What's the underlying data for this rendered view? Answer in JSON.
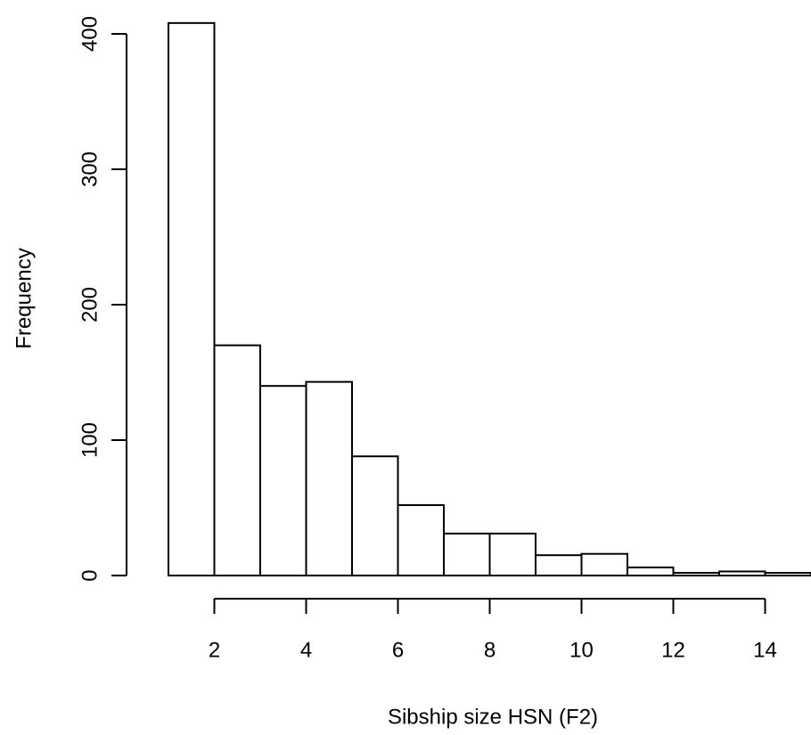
{
  "chart_data": {
    "type": "histogram",
    "x_label": "Sibship size HSN (F2)",
    "y_label": "Frequency",
    "bins": [
      1,
      2,
      3,
      4,
      5,
      6,
      7,
      8,
      9,
      10,
      11,
      12,
      13,
      14,
      15
    ],
    "values": [
      408,
      170,
      140,
      143,
      88,
      52,
      31,
      31,
      15,
      16,
      6,
      2,
      3,
      2
    ],
    "color": "#ffffff",
    "xlim": [
      1,
      15
    ],
    "xticks": [
      2,
      4,
      6,
      8,
      10,
      12,
      14
    ],
    "ylim": [
      0,
      400
    ],
    "yticks": [
      0,
      100,
      200,
      300,
      400
    ]
  }
}
